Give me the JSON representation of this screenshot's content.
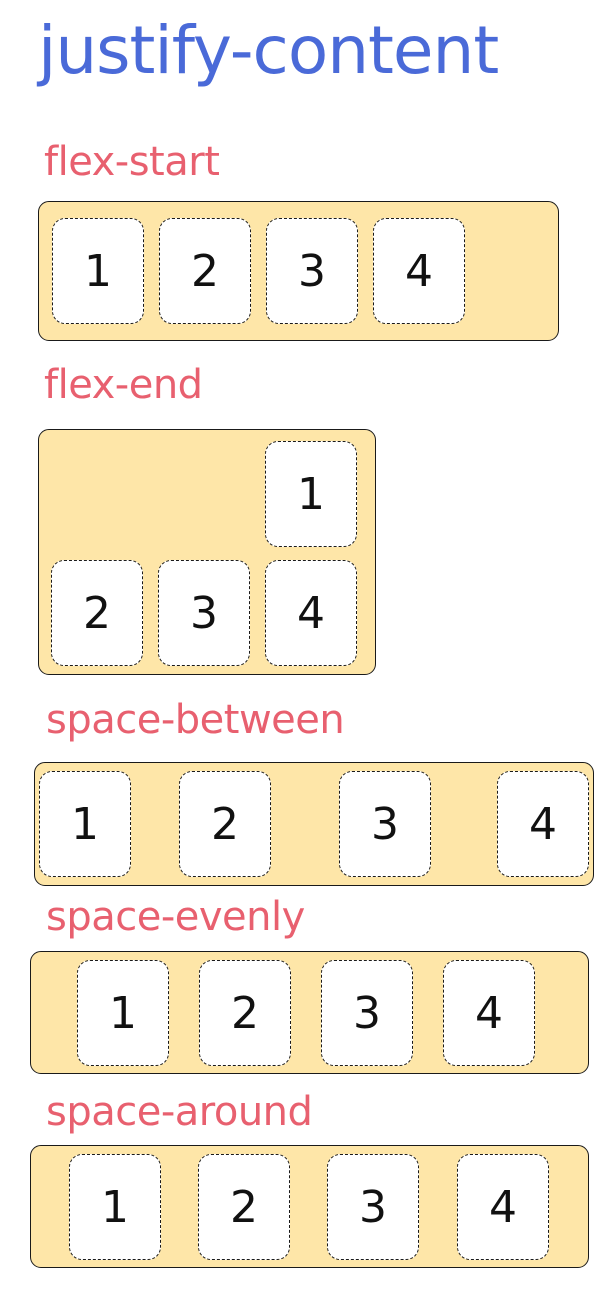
{
  "title": "justify-content",
  "accent_colors": {
    "title": "#4a6ad8",
    "label": "#e8606f",
    "container_fill": "#fee6a8",
    "item_fill": "#ffffff"
  },
  "sections": [
    {
      "label": "flex-start",
      "items": [
        "1",
        "2",
        "3",
        "4"
      ]
    },
    {
      "label": "flex-end",
      "items": [
        "1",
        "2",
        "3",
        "4"
      ]
    },
    {
      "label": "space-between",
      "items": [
        "1",
        "2",
        "3",
        "4"
      ]
    },
    {
      "label": "space-evenly",
      "items": [
        "1",
        "2",
        "3",
        "4"
      ]
    },
    {
      "label": "space-around",
      "items": [
        "1",
        "2",
        "3",
        "4"
      ]
    }
  ]
}
